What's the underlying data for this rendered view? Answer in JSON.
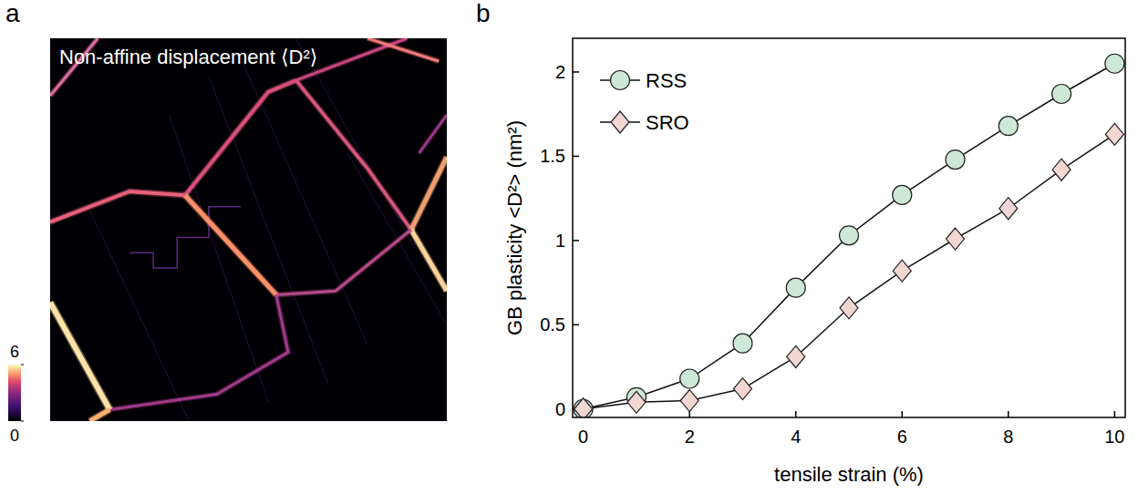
{
  "chart_data": [
    {
      "type": "image",
      "panel": "a",
      "title": "Non-affine displacement ⟨D²⟩",
      "colorbar_range": [
        0,
        6
      ],
      "colorbar_ticks": [
        0,
        6
      ]
    },
    {
      "type": "line",
      "panel": "b",
      "x": [
        0,
        1,
        2,
        3,
        4,
        5,
        6,
        7,
        8,
        9,
        10
      ],
      "series": [
        {
          "name": "RSS",
          "color": "#cde8d5",
          "marker": "circle",
          "values": [
            0,
            0.07,
            0.18,
            0.39,
            0.72,
            1.03,
            1.27,
            1.48,
            1.68,
            1.87,
            2.05
          ]
        },
        {
          "name": "SRO",
          "color": "#f2d6d1",
          "marker": "diamond",
          "values": [
            0,
            0.04,
            0.05,
            0.12,
            0.31,
            0.6,
            0.82,
            1.01,
            1.19,
            1.42,
            1.63
          ]
        }
      ],
      "xlabel": "tensile strain (%)",
      "ylabel": "GB plasticity <D²> (nm²)",
      "xlim": [
        -0.2,
        10.2
      ],
      "ylim": [
        -0.05,
        2.2
      ],
      "xticks": [
        0,
        2,
        4,
        6,
        8,
        10
      ],
      "yticks": [
        0,
        0.5,
        1,
        1.5,
        2
      ],
      "legend": "upper left"
    }
  ]
}
